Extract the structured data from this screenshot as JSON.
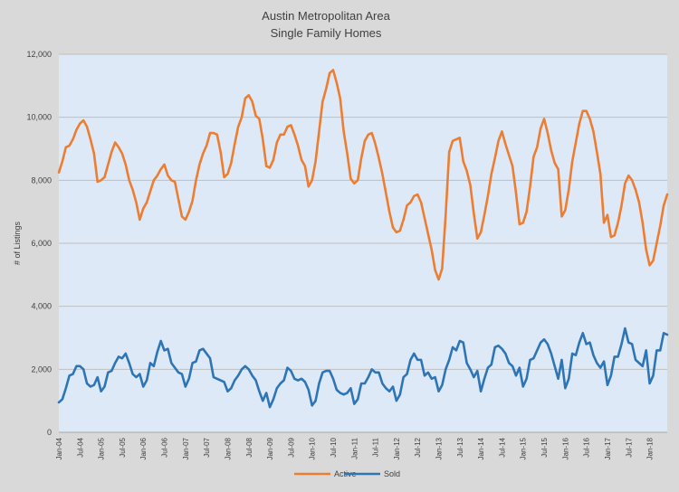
{
  "chart_data": {
    "type": "line",
    "title": "Austin Metropolitan Area",
    "subtitle": "Single Family Homes",
    "ylabel": "# of Listings",
    "xlabel": "",
    "ylim": [
      0,
      12000
    ],
    "yticks": [
      "0",
      "2,000",
      "4,000",
      "6,000",
      "8,000",
      "10,000",
      "12,000"
    ],
    "grid": true,
    "legend": "bottom",
    "xtick_labels": [
      "Jan-04",
      "Jul-04",
      "Jan-05",
      "Jul-05",
      "Jan-06",
      "Jul-06",
      "Jan-07",
      "Jul-07",
      "Jan-08",
      "Jul-08",
      "Jan-09",
      "Jul-09",
      "Jan-10",
      "Jul-10",
      "Jan-11",
      "Jul-11",
      "Jan-12",
      "Jul-12",
      "Jan-13",
      "Jul-13",
      "Jan-14",
      "Jul-14",
      "Jan-15",
      "Jul-15",
      "Jan-16",
      "Jul-16",
      "Jan-17",
      "Jul-17",
      "Jan-18"
    ],
    "x_start": "2004-01",
    "x_frequency": "monthly",
    "series": [
      {
        "name": "Active",
        "color": "#ed7d31",
        "values": [
          8250,
          8600,
          9050,
          9100,
          9300,
          9600,
          9800,
          9900,
          9700,
          9300,
          8850,
          7950,
          8000,
          8100,
          8500,
          8900,
          9200,
          9050,
          8850,
          8500,
          8000,
          7700,
          7300,
          6750,
          7100,
          7300,
          7650,
          8000,
          8150,
          8350,
          8500,
          8150,
          8000,
          7950,
          7400,
          6850,
          6750,
          7000,
          7350,
          8000,
          8500,
          8850,
          9100,
          9500,
          9500,
          9450,
          8900,
          8100,
          8200,
          8550,
          9150,
          9700,
          10000,
          10600,
          10700,
          10500,
          10050,
          9950,
          9300,
          8450,
          8400,
          8650,
          9200,
          9450,
          9450,
          9700,
          9750,
          9450,
          9100,
          8650,
          8450,
          7800,
          8000,
          8600,
          9550,
          10500,
          10900,
          11400,
          11500,
          11100,
          10600,
          9550,
          8850,
          8050,
          7900,
          8000,
          8700,
          9250,
          9450,
          9500,
          9150,
          8700,
          8200,
          7600,
          7000,
          6500,
          6350,
          6400,
          6750,
          7200,
          7300,
          7500,
          7550,
          7300,
          6800,
          6300,
          5800,
          5150,
          4850,
          5200,
          6900,
          8900,
          9250,
          9300,
          9350,
          8600,
          8300,
          7850,
          6950,
          6150,
          6350,
          6900,
          7500,
          8200,
          8700,
          9250,
          9550,
          9150,
          8800,
          8450,
          7600,
          6600,
          6650,
          7000,
          7800,
          8750,
          9050,
          9650,
          9950,
          9500,
          8950,
          8550,
          8350,
          6850,
          7050,
          7700,
          8600,
          9200,
          9800,
          10200,
          10200,
          9950,
          9550,
          8900,
          8200,
          6650,
          6900,
          6200,
          6250,
          6650,
          7200,
          7900,
          8150,
          8000,
          7700,
          7300,
          6650,
          5800,
          5300,
          5450,
          6000,
          6550,
          7200,
          7550
        ]
      },
      {
        "name": "Sold",
        "color": "#2e75b6",
        "values": [
          950,
          1050,
          1400,
          1800,
          1850,
          2100,
          2100,
          2000,
          1550,
          1450,
          1500,
          1750,
          1300,
          1450,
          1900,
          1950,
          2200,
          2400,
          2350,
          2500,
          2200,
          1850,
          1750,
          1850,
          1450,
          1650,
          2200,
          2100,
          2550,
          2900,
          2600,
          2650,
          2200,
          2050,
          1900,
          1850,
          1450,
          1700,
          2200,
          2250,
          2600,
          2650,
          2500,
          2350,
          1750,
          1700,
          1650,
          1600,
          1300,
          1400,
          1650,
          1800,
          2000,
          2100,
          2000,
          1800,
          1650,
          1300,
          1000,
          1250,
          800,
          1050,
          1400,
          1550,
          1650,
          2050,
          1950,
          1700,
          1650,
          1700,
          1600,
          1350,
          850,
          1000,
          1550,
          1900,
          1950,
          1950,
          1700,
          1350,
          1250,
          1200,
          1250,
          1400,
          900,
          1050,
          1550,
          1550,
          1750,
          2000,
          1900,
          1900,
          1550,
          1400,
          1300,
          1450,
          1000,
          1200,
          1750,
          1850,
          2300,
          2500,
          2300,
          2300,
          1800,
          1900,
          1700,
          1750,
          1300,
          1500,
          2000,
          2300,
          2700,
          2600,
          2900,
          2850,
          2200,
          2000,
          1750,
          1950,
          1300,
          1700,
          2050,
          2150,
          2700,
          2750,
          2650,
          2500,
          2200,
          2100,
          1800,
          2050,
          1450,
          1700,
          2300,
          2350,
          2600,
          2850,
          2950,
          2800,
          2500,
          2100,
          1700,
          2300,
          1400,
          1700,
          2500,
          2450,
          2850,
          3150,
          2800,
          2850,
          2450,
          2200,
          2050,
          2250,
          1500,
          1800,
          2400,
          2400,
          2800,
          3300,
          2850,
          2800,
          2300,
          2200,
          2100,
          2600,
          1550,
          1800,
          2600,
          2600,
          3150,
          3100
        ]
      }
    ]
  }
}
